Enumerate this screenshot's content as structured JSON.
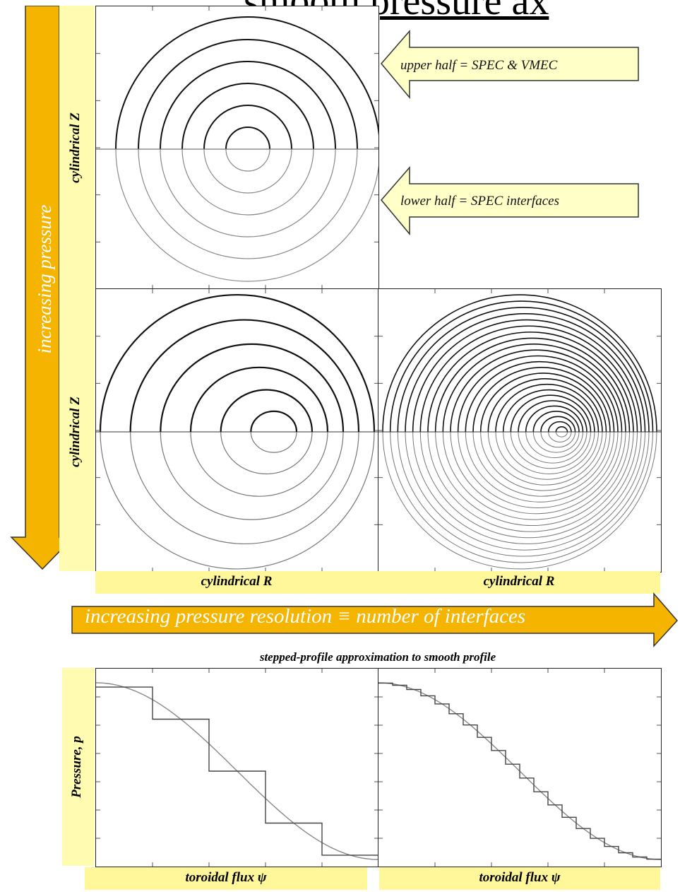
{
  "title": "smooth pressure ax",
  "vertical_arrow": {
    "label": "increasing pressure"
  },
  "horizontal_arrow": {
    "label": "increasing pressure resolution ≡ number of interfaces"
  },
  "callouts": {
    "upper": "upper half = SPEC & VMEC",
    "lower": "lower half = SPEC interfaces"
  },
  "axes": {
    "z_label_top": "cylindrical Z",
    "z_label_mid": "cylindrical Z",
    "r_label_left": "cylindrical R",
    "r_label_right": "cylindrical R",
    "pressure_label": "Pressure, p",
    "flux_label_left": "toroidal flux ψ",
    "flux_label_right": "toroidal flux ψ"
  },
  "profile_caption": "stepped-profile approximation to smooth profile",
  "chart_data": [
    {
      "type": "line",
      "panel": "pressure-left",
      "xlabel": "toroidal flux ψ",
      "ylabel": "Pressure, p",
      "steps": 5,
      "series": [
        {
          "style": "smooth",
          "x": [
            0,
            0.1,
            0.2,
            0.3,
            0.4,
            0.5,
            0.6,
            0.7,
            0.8,
            0.9,
            1.0
          ],
          "y": [
            1.0,
            0.98,
            0.91,
            0.81,
            0.67,
            0.51,
            0.36,
            0.22,
            0.11,
            0.03,
            0.0
          ]
        },
        {
          "style": "stepped",
          "x": [
            0,
            0.2,
            0.4,
            0.6,
            0.8,
            1.0
          ],
          "y": [
            0.97,
            0.82,
            0.58,
            0.34,
            0.08,
            0.0
          ]
        }
      ]
    },
    {
      "type": "line",
      "panel": "pressure-right",
      "xlabel": "toroidal flux ψ",
      "ylabel": "Pressure, p",
      "steps": 20,
      "series": [
        {
          "style": "smooth",
          "x": [
            0,
            0.1,
            0.2,
            0.3,
            0.4,
            0.5,
            0.6,
            0.7,
            0.8,
            0.9,
            1.0
          ],
          "y": [
            1.0,
            0.98,
            0.91,
            0.81,
            0.67,
            0.51,
            0.36,
            0.22,
            0.11,
            0.03,
            0.0
          ]
        },
        {
          "style": "stepped",
          "x": [
            0,
            0.05,
            0.1,
            0.15,
            0.2,
            0.25,
            0.3,
            0.35,
            0.4,
            0.45,
            0.5,
            0.55,
            0.6,
            0.65,
            0.7,
            0.75,
            0.8,
            0.85,
            0.9,
            0.95,
            1.0
          ]
        }
      ]
    }
  ]
}
